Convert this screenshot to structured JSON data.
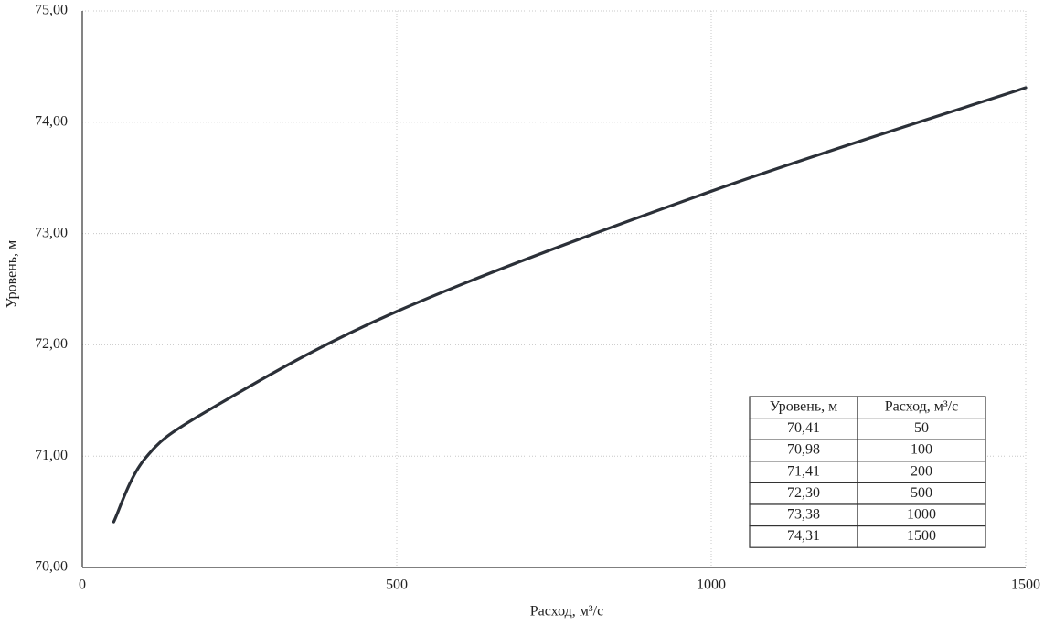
{
  "chart_data": {
    "type": "line",
    "x_label": "Расход, м³/с",
    "y_label": "Уровень, м",
    "x": [
      50,
      100,
      200,
      500,
      1000,
      1500
    ],
    "values": [
      70.41,
      70.98,
      71.41,
      72.3,
      73.38,
      74.31
    ],
    "value_labels": [
      "70,41",
      "70,98",
      "71,41",
      "72,30",
      "73,38",
      "74,31"
    ],
    "color": "#2b3038",
    "xlim": [
      0,
      1500
    ],
    "xticks": [
      0,
      500,
      1000,
      1500
    ],
    "ylim": [
      70,
      75
    ],
    "yticks": [
      {
        "value": 70,
        "label": "70,00"
      },
      {
        "value": 71,
        "label": "71,00"
      },
      {
        "value": 72,
        "label": "72,00"
      },
      {
        "value": 73,
        "label": "73,00"
      },
      {
        "value": 74,
        "label": "74,00"
      },
      {
        "value": 75,
        "label": "75,00"
      }
    ],
    "grid": true,
    "table": {
      "columns": [
        "Уровень, м",
        "Расход, м³/с"
      ]
    }
  }
}
